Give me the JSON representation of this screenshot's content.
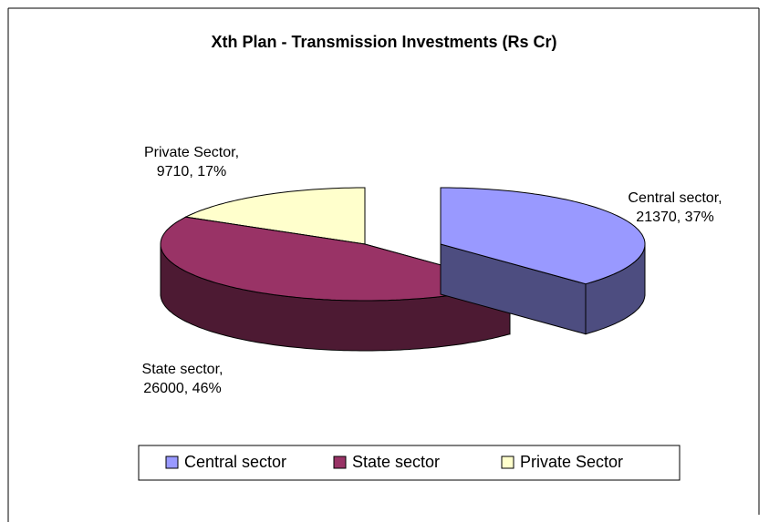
{
  "chart_data": {
    "type": "pie3d",
    "title": "Xth Plan - Transmission Investments (Rs Cr)",
    "categories": [
      "Central sector",
      "State sector",
      "Private Sector"
    ],
    "values": [
      21370,
      26000,
      9710
    ],
    "value_labels": [
      [
        "Central sector,",
        "21370, 37%"
      ],
      [
        "State sector,",
        "26000, 46%"
      ],
      [
        "Private Sector,",
        "9710, 17%"
      ]
    ],
    "colors": [
      "#9999ff",
      "#993366",
      "#ffffcc"
    ],
    "legend": "bottom"
  }
}
